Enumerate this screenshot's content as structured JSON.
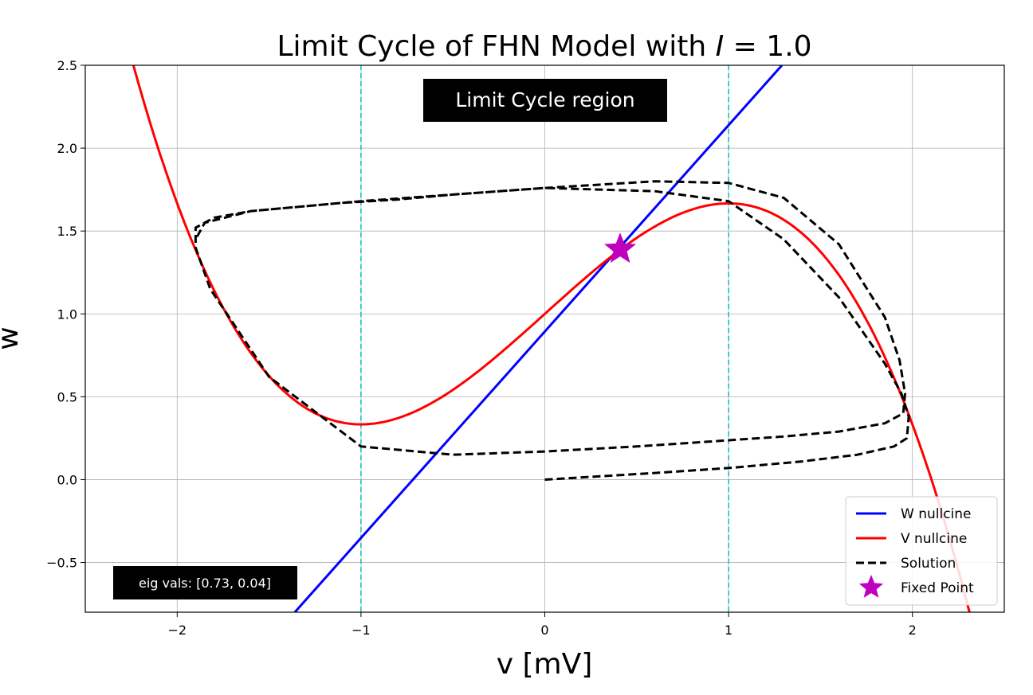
{
  "chart_data": {
    "type": "line",
    "title": "Limit Cycle of FHN Model with I = 1.0",
    "title_plain": "Limit Cycle of FHN Model with ",
    "title_var": "I",
    "title_value": " = 1.0",
    "xlabel": "v [mV]",
    "ylabel": "w",
    "xlim": [
      -2.5,
      2.5
    ],
    "ylim": [
      -0.8,
      2.5
    ],
    "xticks": [
      -2,
      -1,
      0,
      1,
      2
    ],
    "xtick_labels": [
      "−2",
      "−1",
      "0",
      "1",
      "2"
    ],
    "yticks": [
      -0.5,
      0.0,
      0.5,
      1.0,
      1.5,
      2.0,
      2.5
    ],
    "ytick_labels": [
      "−0.5",
      "0.0",
      "0.5",
      "1.0",
      "1.5",
      "2.0",
      "2.5"
    ],
    "grid": true,
    "legend_position": "lower-right",
    "series": [
      {
        "name": "W nullcine",
        "color": "#0000ff",
        "style": "solid",
        "x": [
          -1.36,
          1.29
        ],
        "y": [
          -0.8,
          2.5
        ]
      },
      {
        "name": "V nullcine",
        "color": "#ff0000",
        "style": "solid",
        "formula": "w = v - v^3/3 + I",
        "x_range": [
          -2.25,
          2.33
        ],
        "I": 1.0
      },
      {
        "name": "Solution",
        "color": "#000000",
        "style": "dashed",
        "x": [
          0.0,
          0.3,
          0.6,
          1.0,
          1.4,
          1.7,
          1.9,
          1.97,
          1.98,
          1.94,
          1.85,
          1.6,
          1.3,
          1.0,
          0.6,
          0.0,
          -0.5,
          -0.8,
          -1.1,
          -1.4,
          -1.6,
          -1.8,
          -1.9,
          -1.9,
          -1.82,
          -1.5,
          -1.0,
          -0.5,
          0.0,
          0.5,
          0.9,
          1.3,
          1.6,
          1.85,
          1.95,
          1.96,
          1.93,
          1.85,
          1.6,
          1.3,
          1.0,
          0.6,
          0.0,
          -0.5,
          -1.0,
          -1.6,
          -1.85,
          -1.9
        ],
        "y": [
          0.0,
          0.02,
          0.04,
          0.07,
          0.11,
          0.15,
          0.2,
          0.25,
          0.38,
          0.52,
          0.7,
          1.1,
          1.45,
          1.68,
          1.74,
          1.76,
          1.72,
          1.69,
          1.67,
          1.64,
          1.62,
          1.58,
          1.52,
          1.4,
          1.15,
          0.62,
          0.2,
          0.15,
          0.17,
          0.2,
          0.23,
          0.26,
          0.29,
          0.34,
          0.4,
          0.52,
          0.72,
          0.98,
          1.42,
          1.7,
          1.79,
          1.8,
          1.76,
          1.72,
          1.68,
          1.62,
          1.55,
          1.45
        ]
      },
      {
        "name": "Fixed Point",
        "color": "#bf00bf",
        "style": "marker-star",
        "x": [
          0.41
        ],
        "y": [
          1.39
        ]
      }
    ],
    "vlines": {
      "x": [
        -1,
        1
      ],
      "color": "#00bfbf",
      "style": "dashed"
    },
    "annotations": [
      {
        "text": "Limit Cycle region",
        "position": "top-center"
      },
      {
        "text": "eig vals: [0.73, 0.04]",
        "position": "bottom-left"
      }
    ]
  }
}
